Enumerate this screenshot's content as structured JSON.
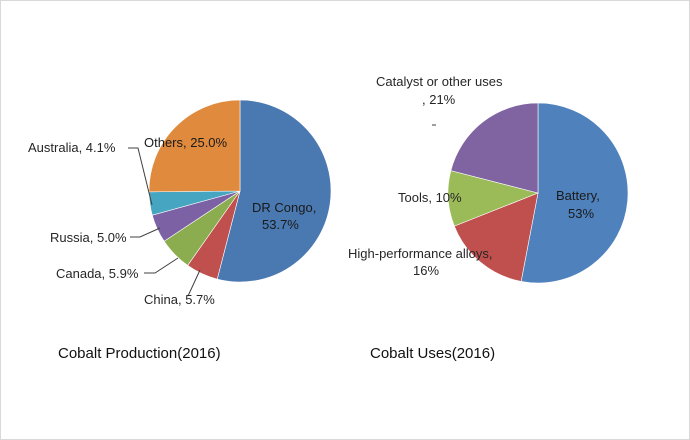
{
  "chart_data": [
    {
      "type": "pie",
      "title": "Cobalt Production(2016)",
      "slices": [
        {
          "label": "DR Congo",
          "value": 53.7,
          "value_text": "53.7%",
          "color": "#4a78b0"
        },
        {
          "label": "China",
          "value": 5.7,
          "value_text": "5.7%",
          "color": "#c0504d"
        },
        {
          "label": "Canada",
          "value": 5.9,
          "value_text": "5.9%",
          "color": "#8cad4f"
        },
        {
          "label": "Russia",
          "value": 5.0,
          "value_text": "5.0%",
          "color": "#7c62a4"
        },
        {
          "label": "Australia",
          "value": 4.1,
          "value_text": "4.1%",
          "color": "#46a6c1"
        },
        {
          "label": "Others",
          "value": 25.0,
          "value_text": "25.0%",
          "color": "#e08a3e"
        }
      ]
    },
    {
      "type": "pie",
      "title": "Cobalt Uses(2016)",
      "slices": [
        {
          "label": "Battery",
          "value": 53,
          "value_text": "53%",
          "color": "#4f81bd"
        },
        {
          "label": "High-performance alloys",
          "value": 16,
          "value_text": "16%",
          "color": "#c0504d"
        },
        {
          "label": "Tools",
          "value": 10,
          "value_text": "10%",
          "color": "#9bbb59"
        },
        {
          "label": "Catalyst or other uses",
          "value": 21,
          "value_text": "21%",
          "color": "#8064a2"
        }
      ]
    }
  ],
  "labels": {
    "prod_drc": "DR Congo,",
    "prod_drc_val": "53.7%",
    "prod_china": "China, 5.7%",
    "prod_canada": "Canada, 5.9%",
    "prod_russia": "Russia, 5.0%",
    "prod_australia": "Australia, 4.1%",
    "prod_others": "Others, 25.0%",
    "uses_battery": "Battery,",
    "uses_battery_val": "53%",
    "uses_alloys": "High-performance alloys,",
    "uses_alloys_val": "16%",
    "uses_tools": "Tools, 10%",
    "uses_catalyst": "Catalyst or other uses",
    "uses_catalyst_val": ", 21%"
  }
}
